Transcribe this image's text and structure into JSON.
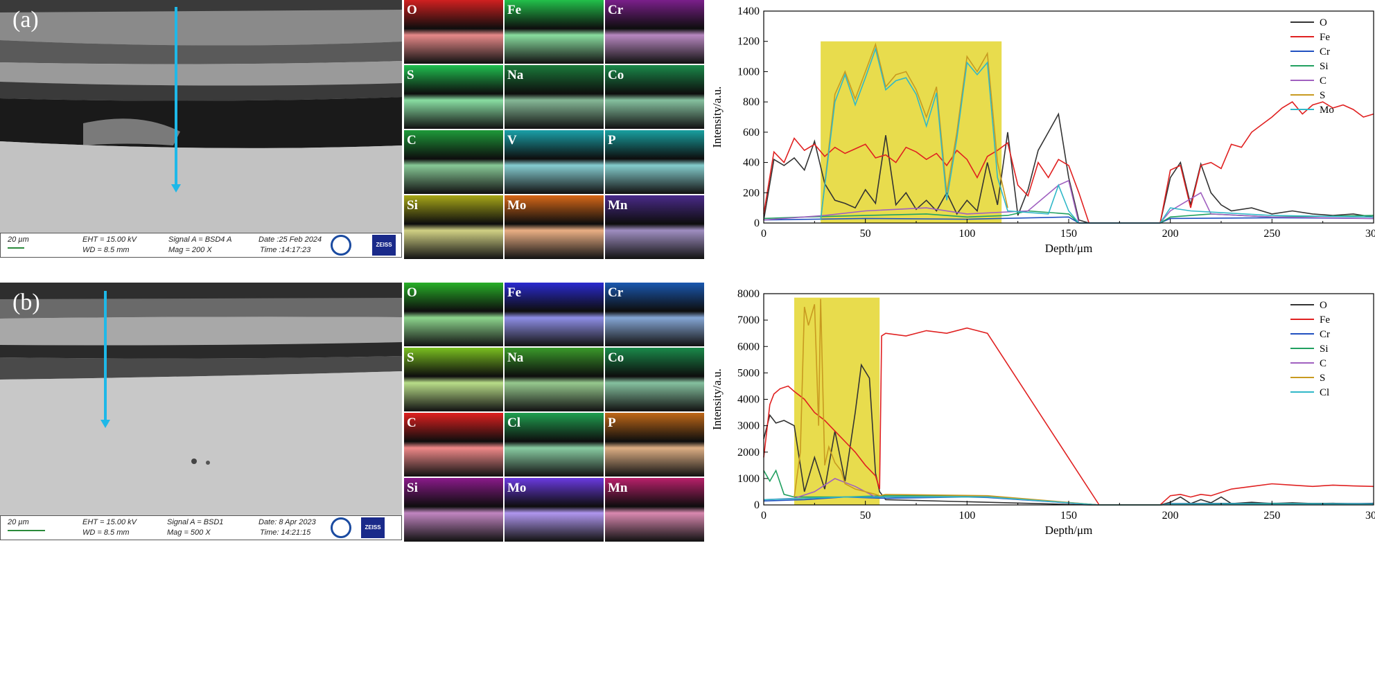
{
  "panel_a": {
    "label": "(a)",
    "sem": {
      "scale": "20 µm",
      "eht": "EHT = 15.00 kV",
      "wd": "WD =  8.5 mm",
      "signal": "Signal A = BSD4 A",
      "mag": "Mag =    200 X",
      "date": "Date :25 Feb 2024",
      "time": "Time :14:17:23",
      "brand": "ZEISS"
    },
    "maps": [
      {
        "el": "O",
        "color": "#d02020"
      },
      {
        "el": "Fe",
        "color": "#22c04a"
      },
      {
        "el": "Cr",
        "color": "#7a1f8a"
      },
      {
        "el": "S",
        "color": "#20c050"
      },
      {
        "el": "Na",
        "color": "#1a7a3a"
      },
      {
        "el": "Co",
        "color": "#1a8a4a"
      },
      {
        "el": "C",
        "color": "#1e9a3a"
      },
      {
        "el": "V",
        "color": "#1aa0a8"
      },
      {
        "el": "P",
        "color": "#18a0a0"
      },
      {
        "el": "Si",
        "color": "#a8a818"
      },
      {
        "el": "Mo",
        "color": "#d86818"
      },
      {
        "el": "Mn",
        "color": "#4a2a8a"
      }
    ]
  },
  "panel_b": {
    "label": "(b)",
    "sem": {
      "scale": "20 µm",
      "eht": "EHT = 15.00 kV",
      "wd": "WD =  8.5 mm",
      "signal": "Signal A = BSD1",
      "mag": "Mag =    500 X",
      "date": "Date: 8 Apr 2023",
      "time": "Time: 14:21:15",
      "brand": "ZEISS"
    },
    "maps": [
      {
        "el": "O",
        "color": "#28b028"
      },
      {
        "el": "Fe",
        "color": "#2a2ad0"
      },
      {
        "el": "Cr",
        "color": "#1a58b0"
      },
      {
        "el": "S",
        "color": "#7ac020"
      },
      {
        "el": "Na",
        "color": "#3a9a2a"
      },
      {
        "el": "Co",
        "color": "#1a8a4a"
      },
      {
        "el": "C",
        "color": "#e02020"
      },
      {
        "el": "Cl",
        "color": "#20a050"
      },
      {
        "el": "P",
        "color": "#c06818"
      },
      {
        "el": "Si",
        "color": "#8a1a8a"
      },
      {
        "el": "Mo",
        "color": "#6a3ae0"
      },
      {
        "el": "Mn",
        "color": "#b8206a"
      }
    ]
  },
  "chart_data": [
    {
      "type": "line",
      "xlabel": "Depth/μm",
      "ylabel": "Intensity/a.u.",
      "xlim": [
        0,
        300
      ],
      "ylim": [
        0,
        1400
      ],
      "xticks": [
        0,
        50,
        100,
        150,
        200,
        250,
        300
      ],
      "yticks": [
        0,
        200,
        400,
        600,
        800,
        1000,
        1200,
        1400
      ],
      "highlight": {
        "x": [
          28,
          117
        ],
        "y": [
          0,
          1200
        ],
        "color": "#e6d83a"
      },
      "legend_position": "top-right",
      "series": [
        {
          "name": "O",
          "color": "#333333",
          "x": [
            0,
            5,
            10,
            15,
            20,
            25,
            30,
            35,
            40,
            45,
            50,
            55,
            60,
            65,
            70,
            75,
            80,
            85,
            90,
            95,
            100,
            105,
            110,
            115,
            120,
            125,
            130,
            135,
            140,
            145,
            150,
            155,
            160,
            195,
            200,
            205,
            210,
            215,
            220,
            225,
            230,
            240,
            250,
            260,
            270,
            280,
            290,
            300
          ],
          "y": [
            20,
            420,
            380,
            430,
            350,
            540,
            260,
            150,
            130,
            100,
            220,
            130,
            580,
            120,
            200,
            90,
            150,
            80,
            200,
            60,
            150,
            80,
            400,
            120,
            600,
            50,
            220,
            480,
            600,
            720,
            300,
            20,
            0,
            0,
            300,
            400,
            120,
            390,
            200,
            120,
            80,
            100,
            60,
            80,
            60,
            50,
            60,
            40
          ]
        },
        {
          "name": "Fe",
          "color": "#e02020",
          "x": [
            0,
            5,
            10,
            15,
            20,
            25,
            30,
            35,
            40,
            45,
            50,
            55,
            60,
            65,
            70,
            75,
            80,
            85,
            90,
            95,
            100,
            105,
            110,
            115,
            120,
            125,
            130,
            135,
            140,
            145,
            150,
            155,
            160,
            195,
            200,
            205,
            210,
            215,
            220,
            225,
            230,
            235,
            240,
            245,
            250,
            255,
            260,
            265,
            270,
            275,
            280,
            285,
            290,
            295,
            300
          ],
          "y": [
            60,
            470,
            400,
            560,
            480,
            520,
            440,
            500,
            460,
            490,
            520,
            430,
            450,
            400,
            500,
            470,
            420,
            460,
            380,
            480,
            420,
            300,
            440,
            480,
            530,
            250,
            180,
            400,
            300,
            420,
            380,
            200,
            0,
            0,
            350,
            380,
            100,
            380,
            400,
            360,
            520,
            500,
            600,
            650,
            700,
            760,
            800,
            720,
            780,
            800,
            760,
            780,
            750,
            700,
            720
          ]
        },
        {
          "name": "Cr",
          "color": "#2050c0",
          "x": [
            0,
            50,
            100,
            150,
            155,
            195,
            200,
            250,
            300
          ],
          "y": [
            20,
            30,
            25,
            40,
            0,
            0,
            30,
            35,
            30
          ]
        },
        {
          "name": "Si",
          "color": "#20a060",
          "x": [
            0,
            20,
            50,
            80,
            100,
            120,
            130,
            150,
            155,
            195,
            200,
            220,
            250,
            300
          ],
          "y": [
            30,
            40,
            50,
            60,
            40,
            50,
            80,
            60,
            0,
            0,
            40,
            60,
            40,
            50
          ]
        },
        {
          "name": "C",
          "color": "#a060c0",
          "x": [
            0,
            30,
            50,
            80,
            100,
            130,
            145,
            150,
            155,
            195,
            200,
            215,
            220,
            250,
            300
          ],
          "y": [
            20,
            50,
            80,
            100,
            60,
            80,
            250,
            280,
            0,
            0,
            80,
            200,
            60,
            40,
            30
          ]
        },
        {
          "name": "S",
          "color": "#c89a20",
          "x": [
            28,
            35,
            40,
            45,
            50,
            55,
            60,
            65,
            70,
            75,
            80,
            85,
            90,
            95,
            100,
            105,
            110,
            115,
            120
          ],
          "y": [
            20,
            850,
            1000,
            820,
            1000,
            1180,
            900,
            980,
            1000,
            880,
            700,
            900,
            200,
            600,
            1100,
            1000,
            1120,
            400,
            100
          ]
        },
        {
          "name": "Mo",
          "color": "#30b8c8",
          "x": [
            28,
            35,
            40,
            45,
            50,
            55,
            60,
            65,
            70,
            75,
            80,
            85,
            90,
            95,
            100,
            105,
            110,
            115,
            120,
            140,
            145,
            150,
            155,
            195,
            200,
            210,
            250,
            300
          ],
          "y": [
            20,
            800,
            980,
            780,
            960,
            1150,
            880,
            940,
            960,
            850,
            640,
            860,
            150,
            560,
            1060,
            980,
            1060,
            300,
            80,
            60,
            250,
            80,
            0,
            0,
            100,
            80,
            50,
            40
          ]
        }
      ]
    },
    {
      "type": "line",
      "xlabel": "Depth/μm",
      "ylabel": "Intensity/a.u.",
      "xlim": [
        0,
        300
      ],
      "ylim": [
        0,
        8000
      ],
      "xticks": [
        0,
        50,
        100,
        150,
        200,
        250,
        300
      ],
      "yticks": [
        0,
        1000,
        2000,
        3000,
        4000,
        5000,
        6000,
        7000,
        8000
      ],
      "highlight": {
        "x": [
          15,
          57
        ],
        "y": [
          0,
          7850
        ],
        "color": "#e6d83a"
      },
      "legend_position": "top-right",
      "series": [
        {
          "name": "O",
          "color": "#333333",
          "x": [
            0,
            3,
            6,
            10,
            15,
            20,
            25,
            30,
            35,
            40,
            45,
            48,
            52,
            55,
            57,
            60,
            160,
            165,
            195,
            200,
            205,
            210,
            215,
            220,
            225,
            230,
            240,
            250,
            260,
            270,
            280,
            290,
            300
          ],
          "y": [
            2500,
            3400,
            3100,
            3200,
            3000,
            500,
            1800,
            600,
            2800,
            900,
            3500,
            5300,
            4800,
            1200,
            500,
            200,
            0,
            0,
            0,
            100,
            300,
            50,
            200,
            80,
            300,
            50,
            100,
            50,
            80,
            50,
            60,
            40,
            60
          ]
        },
        {
          "name": "Fe",
          "color": "#e02020",
          "x": [
            0,
            3,
            5,
            8,
            12,
            15,
            20,
            25,
            30,
            35,
            40,
            45,
            50,
            55,
            57,
            58,
            60,
            70,
            80,
            90,
            100,
            105,
            110,
            165,
            195,
            200,
            205,
            210,
            215,
            220,
            230,
            240,
            250,
            260,
            270,
            280,
            290,
            300
          ],
          "y": [
            1800,
            3800,
            4200,
            4400,
            4500,
            4300,
            4000,
            3500,
            3200,
            2800,
            2400,
            2000,
            1500,
            1100,
            600,
            6400,
            6500,
            6400,
            6600,
            6500,
            6700,
            6600,
            6500,
            0,
            0,
            350,
            400,
            300,
            400,
            350,
            600,
            700,
            800,
            750,
            700,
            750,
            720,
            700
          ]
        },
        {
          "name": "Cr",
          "color": "#2050c0",
          "x": [
            0,
            20,
            40,
            60,
            100,
            110,
            165,
            195,
            200,
            250,
            300
          ],
          "y": [
            150,
            200,
            300,
            250,
            300,
            280,
            0,
            0,
            50,
            60,
            50
          ]
        },
        {
          "name": "Si",
          "color": "#20a060",
          "x": [
            0,
            3,
            6,
            10,
            15,
            20,
            40,
            60,
            100,
            110,
            165,
            195,
            200,
            250,
            300
          ],
          "y": [
            1300,
            900,
            1300,
            400,
            300,
            300,
            300,
            350,
            350,
            320,
            0,
            0,
            40,
            50,
            40
          ]
        },
        {
          "name": "C",
          "color": "#a060c0",
          "x": [
            0,
            15,
            25,
            35,
            45,
            55,
            60,
            110,
            165,
            195,
            200,
            300
          ],
          "y": [
            200,
            250,
            500,
            1000,
            700,
            300,
            300,
            300,
            0,
            0,
            30,
            30
          ]
        },
        {
          "name": "S",
          "color": "#c89a20",
          "x": [
            15,
            18,
            20,
            22,
            25,
            27,
            28,
            30,
            32,
            35,
            38,
            40,
            45,
            50,
            55,
            57,
            60,
            110,
            165,
            195,
            200,
            300
          ],
          "y": [
            300,
            2000,
            7500,
            6800,
            7600,
            3000,
            7800,
            1500,
            2200,
            1600,
            1300,
            800,
            600,
            500,
            400,
            350,
            400,
            350,
            0,
            0,
            20,
            20
          ]
        },
        {
          "name": "Cl",
          "color": "#30b8c8",
          "x": [
            0,
            20,
            40,
            60,
            110,
            165,
            195,
            200,
            300
          ],
          "y": [
            200,
            250,
            300,
            300,
            300,
            0,
            0,
            30,
            30
          ]
        }
      ]
    }
  ]
}
